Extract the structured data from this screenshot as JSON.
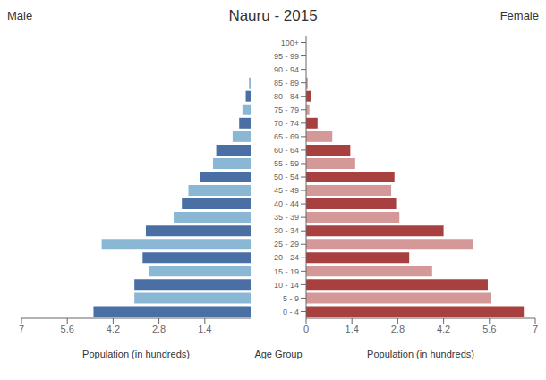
{
  "chart_data": [
    {
      "type": "bar",
      "orientation": "horizontal",
      "title": "Nauru - 2015",
      "categories": [
        "0 - 4",
        "5 - 9",
        "10 - 14",
        "15 - 19",
        "20 - 24",
        "25 - 29",
        "30 - 34",
        "35 - 39",
        "40 - 44",
        "45 - 49",
        "50 - 54",
        "55 - 59",
        "60 - 64",
        "65 - 69",
        "70 - 74",
        "75 - 79",
        "80 - 84",
        "85 - 89",
        "90 - 94",
        "95 - 99",
        "100+"
      ],
      "series": [
        {
          "name": "Male",
          "colors": [
            "#4a6fa5",
            "#8ab8d4",
            "#4a6fa5",
            "#8ab8d4",
            "#4a6fa5",
            "#8ab8d4",
            "#4a6fa5",
            "#8ab8d4",
            "#4a6fa5",
            "#8ab8d4",
            "#4a6fa5",
            "#8ab8d4",
            "#4a6fa5",
            "#8ab8d4",
            "#4a6fa5",
            "#8ab8d4",
            "#4a6fa5",
            "#8ab8d4",
            "#4a6fa5",
            "#8ab8d4",
            "#4a6fa5"
          ],
          "values": [
            4.8,
            3.55,
            3.55,
            3.1,
            3.3,
            4.55,
            3.2,
            2.35,
            2.1,
            1.9,
            1.55,
            1.15,
            1.05,
            0.55,
            0.35,
            0.25,
            0.15,
            0.05,
            0.0,
            0.0,
            0.0
          ]
        }
      ],
      "xlim": [
        7,
        0
      ],
      "xticks": [
        0,
        1.4,
        2.8,
        4.2,
        5.6,
        7
      ],
      "xlabel": "Population (in hundreds)",
      "legend": "upper left",
      "tick_labels": "x"
    },
    {
      "type": "bar",
      "orientation": "horizontal",
      "categories": [
        "0 - 4",
        "5 - 9",
        "10 - 14",
        "15 - 19",
        "20 - 24",
        "25 - 29",
        "30 - 34",
        "35 - 39",
        "40 - 44",
        "45 - 49",
        "50 - 54",
        "55 - 59",
        "60 - 64",
        "65 - 69",
        "70 - 74",
        "75 - 79",
        "80 - 84",
        "85 - 89",
        "90 - 94",
        "95 - 99",
        "100+"
      ],
      "series": [
        {
          "name": "Female",
          "colors": [
            "#a84040",
            "#d49898",
            "#a84040",
            "#d49898",
            "#a84040",
            "#d49898",
            "#a84040",
            "#d49898",
            "#a84040",
            "#d49898",
            "#a84040",
            "#d49898",
            "#a84040",
            "#d49898",
            "#a84040",
            "#d49898",
            "#a84040",
            "#d49898",
            "#a84040",
            "#d49898",
            "#a84040"
          ],
          "values": [
            6.65,
            5.65,
            5.55,
            3.85,
            3.15,
            5.1,
            4.2,
            2.85,
            2.75,
            2.6,
            2.7,
            1.5,
            1.35,
            0.8,
            0.35,
            0.1,
            0.15,
            0.05,
            0.0,
            0.0,
            0.0
          ]
        }
      ],
      "xlim": [
        0,
        7
      ],
      "xticks": [
        0,
        1.4,
        2.8,
        4.2,
        5.6,
        7
      ],
      "xlabel": "Population (in hundreds)",
      "ylabel": "Age Group",
      "legend": "upper right"
    }
  ]
}
